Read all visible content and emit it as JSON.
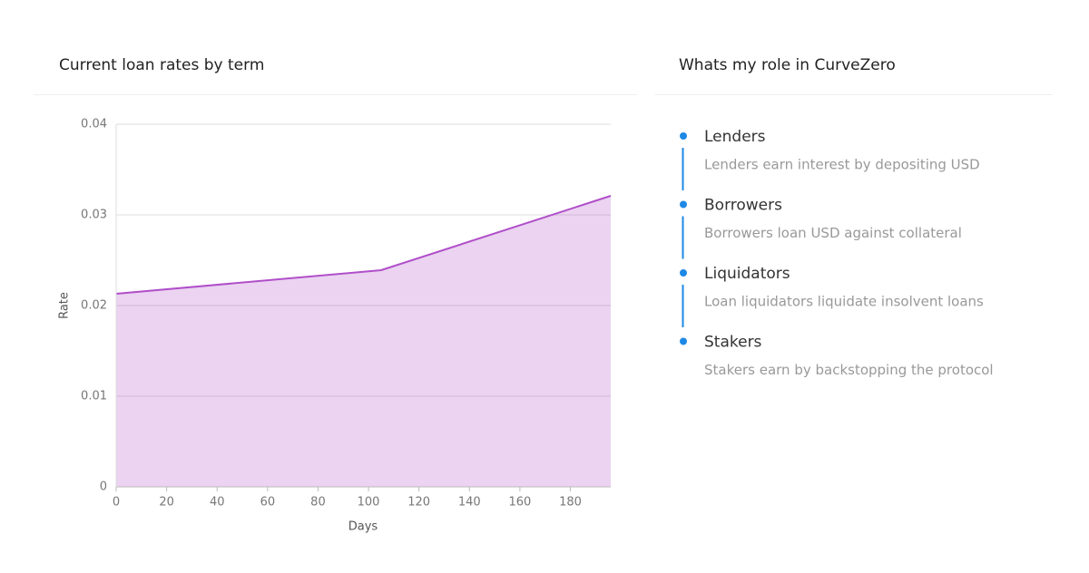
{
  "chart_data": {
    "type": "area",
    "title": "Current loan rates by term",
    "x_label": "Days",
    "y_label": "Rate",
    "x": [
      0,
      105,
      196
    ],
    "series": [
      {
        "name": "Rate",
        "color": "#b04fc9",
        "values": [
          0.0213,
          0.0239,
          0.0321
        ]
      }
    ],
    "xlim": [
      0,
      196
    ],
    "xticks": [
      0,
      20,
      40,
      60,
      80,
      100,
      120,
      140,
      160,
      180
    ],
    "ylim": [
      0,
      0.04
    ],
    "yticks": [
      0,
      0.01,
      0.02,
      0.03,
      0.04
    ],
    "grid": true
  },
  "roles": {
    "title": "Whats my role in CurveZero",
    "items": [
      {
        "title": "Lenders",
        "description": "Lenders earn interest by depositing USD"
      },
      {
        "title": "Borrowers",
        "description": "Borrowers loan USD against collateral"
      },
      {
        "title": "Liquidators",
        "description": "Loan liquidators liquidate insolvent loans"
      },
      {
        "title": "Stakers",
        "description": "Stakers earn by backstopping the protocol"
      }
    ]
  }
}
